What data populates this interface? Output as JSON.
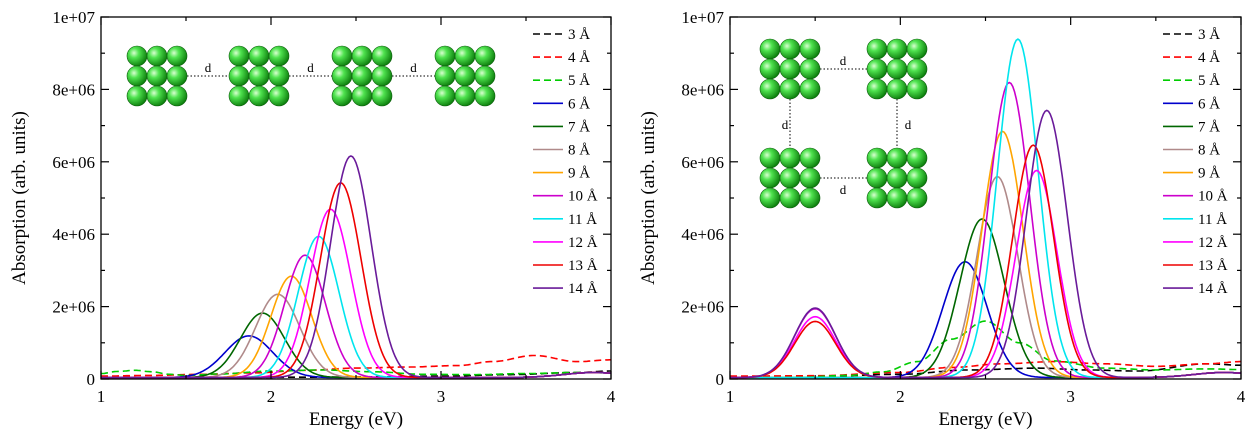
{
  "chart_data": [
    {
      "type": "line",
      "panel": "left",
      "xlabel": "Energy (eV)",
      "ylabel": "Absorption (arb. units)",
      "xlim": [
        1,
        4
      ],
      "ylim": [
        0,
        10000000
      ],
      "xticks": [
        1,
        2,
        3,
        4
      ],
      "xtick_labels": [
        "1",
        "2",
        "3",
        "4"
      ],
      "yticks": [
        0,
        2000000,
        4000000,
        6000000,
        8000000,
        10000000
      ],
      "ytick_labels": [
        "0",
        "2e+06",
        "4e+06",
        "6e+06",
        "8e+06",
        "1e+07"
      ],
      "legend_position": "top-right",
      "inset": {
        "description_label": "d",
        "arrangement": "linear chain"
      },
      "series": [
        {
          "name": "3 Å",
          "color": "#000000",
          "dash": true,
          "x": [
            1.0,
            1.4,
            1.8,
            2.2,
            2.6,
            3.0,
            3.4,
            3.8,
            4.0
          ],
          "y": [
            30000,
            40000,
            40000,
            50000,
            60000,
            80000,
            120000,
            180000,
            220000
          ]
        },
        {
          "name": "4 Å",
          "color": "#ff0000",
          "dash": true,
          "x": [
            1.0,
            1.3,
            1.6,
            1.9,
            2.2,
            2.5,
            2.8,
            3.1,
            3.3,
            3.55,
            3.8,
            4.0
          ],
          "y": [
            80000,
            100000,
            130000,
            170000,
            240000,
            300000,
            330000,
            370000,
            480000,
            650000,
            480000,
            530000
          ]
        },
        {
          "name": "5 Å",
          "color": "#00cc00",
          "dash": true,
          "x": [
            1.0,
            1.1,
            1.2,
            1.3,
            1.4,
            1.5,
            1.7,
            2.0,
            2.3,
            2.6,
            2.9,
            3.2,
            3.5,
            3.8,
            4.0
          ],
          "y": [
            150000,
            210000,
            240000,
            200000,
            130000,
            100000,
            140000,
            220000,
            250000,
            200000,
            130000,
            120000,
            150000,
            180000,
            170000
          ]
        },
        {
          "name": "6 Å",
          "color": "#0000cc",
          "peak": 1.87,
          "height": 1150000,
          "width": 0.14
        },
        {
          "name": "7 Å",
          "color": "#006600",
          "peak": 1.95,
          "height": 1780000,
          "width": 0.13
        },
        {
          "name": "8 Å",
          "color": "#b08a8a",
          "peak": 2.04,
          "height": 2300000,
          "width": 0.13
        },
        {
          "name": "9 Å",
          "color": "#ffa500",
          "peak": 2.12,
          "height": 2800000,
          "width": 0.12
        },
        {
          "name": "10 Å",
          "color": "#cc00cc",
          "peak": 2.2,
          "height": 3380000,
          "width": 0.12
        },
        {
          "name": "11 Å",
          "color": "#00e5ee",
          "peak": 2.28,
          "height": 3900000,
          "width": 0.12
        },
        {
          "name": "12 Å",
          "color": "#ff00ff",
          "peak": 2.35,
          "height": 4650000,
          "width": 0.12
        },
        {
          "name": "13 Å",
          "color": "#ee0000",
          "peak": 2.41,
          "height": 5380000,
          "width": 0.12
        },
        {
          "name": "14 Å",
          "color": "#6a1b9a",
          "peak": 2.47,
          "height": 6120000,
          "width": 0.12
        }
      ]
    },
    {
      "type": "line",
      "panel": "right",
      "xlabel": "Energy (eV)",
      "ylabel": "Absorption (arb. units)",
      "xlim": [
        1,
        4
      ],
      "ylim": [
        0,
        10000000
      ],
      "xticks": [
        1,
        2,
        3,
        4
      ],
      "xtick_labels": [
        "1",
        "2",
        "3",
        "4"
      ],
      "yticks": [
        0,
        2000000,
        4000000,
        6000000,
        8000000,
        10000000
      ],
      "ytick_labels": [
        "0",
        "2e+06",
        "4e+06",
        "6e+06",
        "8e+06",
        "1e+07"
      ],
      "legend_position": "top-right",
      "inset": {
        "description_label": "d",
        "arrangement": "square"
      },
      "series": [
        {
          "name": "3 Å",
          "color": "#000000",
          "dash": true,
          "x": [
            1.0,
            1.5,
            2.0,
            2.4,
            2.8,
            3.1,
            3.4,
            3.8,
            4.0
          ],
          "y": [
            50000,
            70000,
            130000,
            250000,
            300000,
            250000,
            220000,
            420000,
            380000
          ]
        },
        {
          "name": "4 Å",
          "color": "#ff0000",
          "dash": true,
          "x": [
            1.0,
            1.5,
            2.0,
            2.3,
            2.6,
            2.9,
            3.2,
            3.5,
            3.8,
            4.0
          ],
          "y": [
            80000,
            90000,
            180000,
            320000,
            420000,
            480000,
            420000,
            350000,
            420000,
            480000
          ]
        },
        {
          "name": "5 Å",
          "color": "#00cc00",
          "dash": true,
          "x": [
            1.0,
            1.4,
            1.7,
            1.9,
            2.1,
            2.3,
            2.5,
            2.7,
            2.9,
            3.2,
            3.5,
            3.8,
            4.0
          ],
          "y": [
            30000,
            50000,
            100000,
            200000,
            480000,
            1100000,
            1600000,
            1000000,
            500000,
            300000,
            250000,
            280000,
            260000
          ]
        },
        {
          "name": "6 Å",
          "color": "#0000cc",
          "peak": 2.38,
          "height": 3200000,
          "width": 0.13
        },
        {
          "name": "7 Å",
          "color": "#006600",
          "peak": 2.48,
          "height": 4380000,
          "width": 0.13
        },
        {
          "name": "8 Å",
          "color": "#b08a8a",
          "peak": 2.57,
          "height": 5550000,
          "width": 0.12
        },
        {
          "name": "9 Å",
          "color": "#ffa500",
          "peak": 2.6,
          "height": 6800000,
          "width": 0.12
        },
        {
          "name": "10 Å",
          "color": "#cc00cc",
          "peak": 2.64,
          "height": 8150000,
          "width": 0.12
        },
        {
          "name": "11 Å",
          "color": "#00e5ee",
          "peak": 2.69,
          "height": 9350000,
          "width": 0.12
        },
        {
          "name": "12 Å",
          "color": "#ff00ff",
          "peak": 2.8,
          "height": 5720000,
          "width": 0.12
        },
        {
          "name": "13 Å",
          "color": "#ee0000",
          "peak": 2.78,
          "height": 6420000,
          "width": 0.12
        },
        {
          "name": "14 Å",
          "color": "#6a1b9a",
          "peak": 2.86,
          "height": 7380000,
          "width": 0.12
        }
      ],
      "low_energy_peak": {
        "peak": 1.5,
        "width": 0.12,
        "heights": {
          "10 Å": 1900000,
          "12 Å": 1680000,
          "13 Å": 1550000,
          "14 Å": 1920000
        }
      }
    }
  ]
}
